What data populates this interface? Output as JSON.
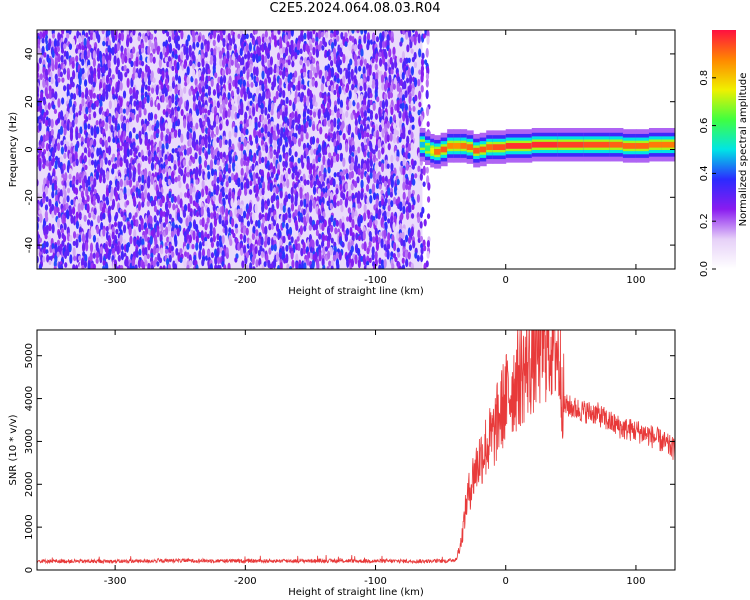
{
  "title": "C2E5.2024.064.08.03.R04",
  "colors": {
    "noise": "#7a1cf0",
    "line": "#e83a3a"
  },
  "chart_data": [
    {
      "type": "heatmap",
      "xlabel": "Height of straight line (km)",
      "ylabel": "Frequency (Hz)",
      "xlim": [
        -360,
        130
      ],
      "ylim": [
        -50,
        50
      ],
      "x_ticks": [
        -300,
        -200,
        -100,
        0,
        100
      ],
      "y_ticks": [
        -40,
        -20,
        0,
        20,
        40
      ],
      "colorbar": {
        "label": "Normalized spectral amplitude",
        "range": [
          0,
          1
        ],
        "ticks": [
          0.0,
          0.2,
          0.4,
          0.6,
          0.8
        ],
        "tick_labels": [
          "0.0",
          "0.2",
          "0.4",
          "0.6",
          "0.8"
        ],
        "colormap": [
          "#ffffff",
          "#e6d0f8",
          "#8a1cf0",
          "#2b2bff",
          "#00e5e5",
          "#40ff40",
          "#f0f000",
          "#ff8800",
          "#ff1040"
        ]
      },
      "noise_region_x": [
        -360,
        -64
      ],
      "noise_amplitude": 0.12,
      "signal_line": {
        "x": [
          -66,
          -62,
          -58,
          -55,
          -50,
          -45,
          -40,
          -35,
          -30,
          -25,
          -20,
          -15,
          -10,
          0,
          20,
          40,
          60,
          80,
          90,
          100,
          110,
          120,
          130
        ],
        "frequency_hz": [
          3,
          1,
          0,
          -1,
          -1,
          1,
          2,
          1,
          2,
          0,
          -1,
          1,
          1,
          1,
          2,
          2,
          2,
          2,
          2,
          1,
          2,
          2,
          2
        ],
        "amplitude": [
          0.45,
          0.5,
          0.65,
          0.85,
          0.95,
          0.9,
          0.85,
          0.88,
          0.92,
          0.9,
          0.95,
          0.9,
          0.92,
          0.95,
          0.98,
          0.96,
          0.94,
          0.93,
          0.9,
          0.92,
          0.9,
          0.88,
          0.9
        ]
      }
    },
    {
      "type": "line",
      "xlabel": "Height of straight line (km)",
      "ylabel": "SNR (10 * v/v)",
      "xlim": [
        -360,
        130
      ],
      "ylim": [
        0,
        5600
      ],
      "x_ticks": [
        -300,
        -200,
        -100,
        0,
        100
      ],
      "y_ticks": [
        0,
        1000,
        2000,
        3000,
        4000,
        5000
      ],
      "series": [
        {
          "x": [
            -360,
            -300,
            -250,
            -200,
            -150,
            -100,
            -60,
            -45,
            -38,
            -34,
            -30,
            -25,
            -20,
            -15,
            -10,
            -5,
            0,
            10,
            20,
            25,
            30,
            35,
            40,
            45,
            50,
            60,
            70,
            80,
            90,
            100,
            110,
            120,
            130
          ],
          "y": [
            210,
            200,
            220,
            210,
            215,
            210,
            205,
            210,
            250,
            700,
            1600,
            2200,
            2600,
            2900,
            3100,
            3600,
            4000,
            4500,
            4900,
            5100,
            5300,
            5350,
            5150,
            3850,
            3800,
            3700,
            3650,
            3450,
            3300,
            3250,
            3150,
            3000,
            2800
          ]
        }
      ]
    }
  ]
}
